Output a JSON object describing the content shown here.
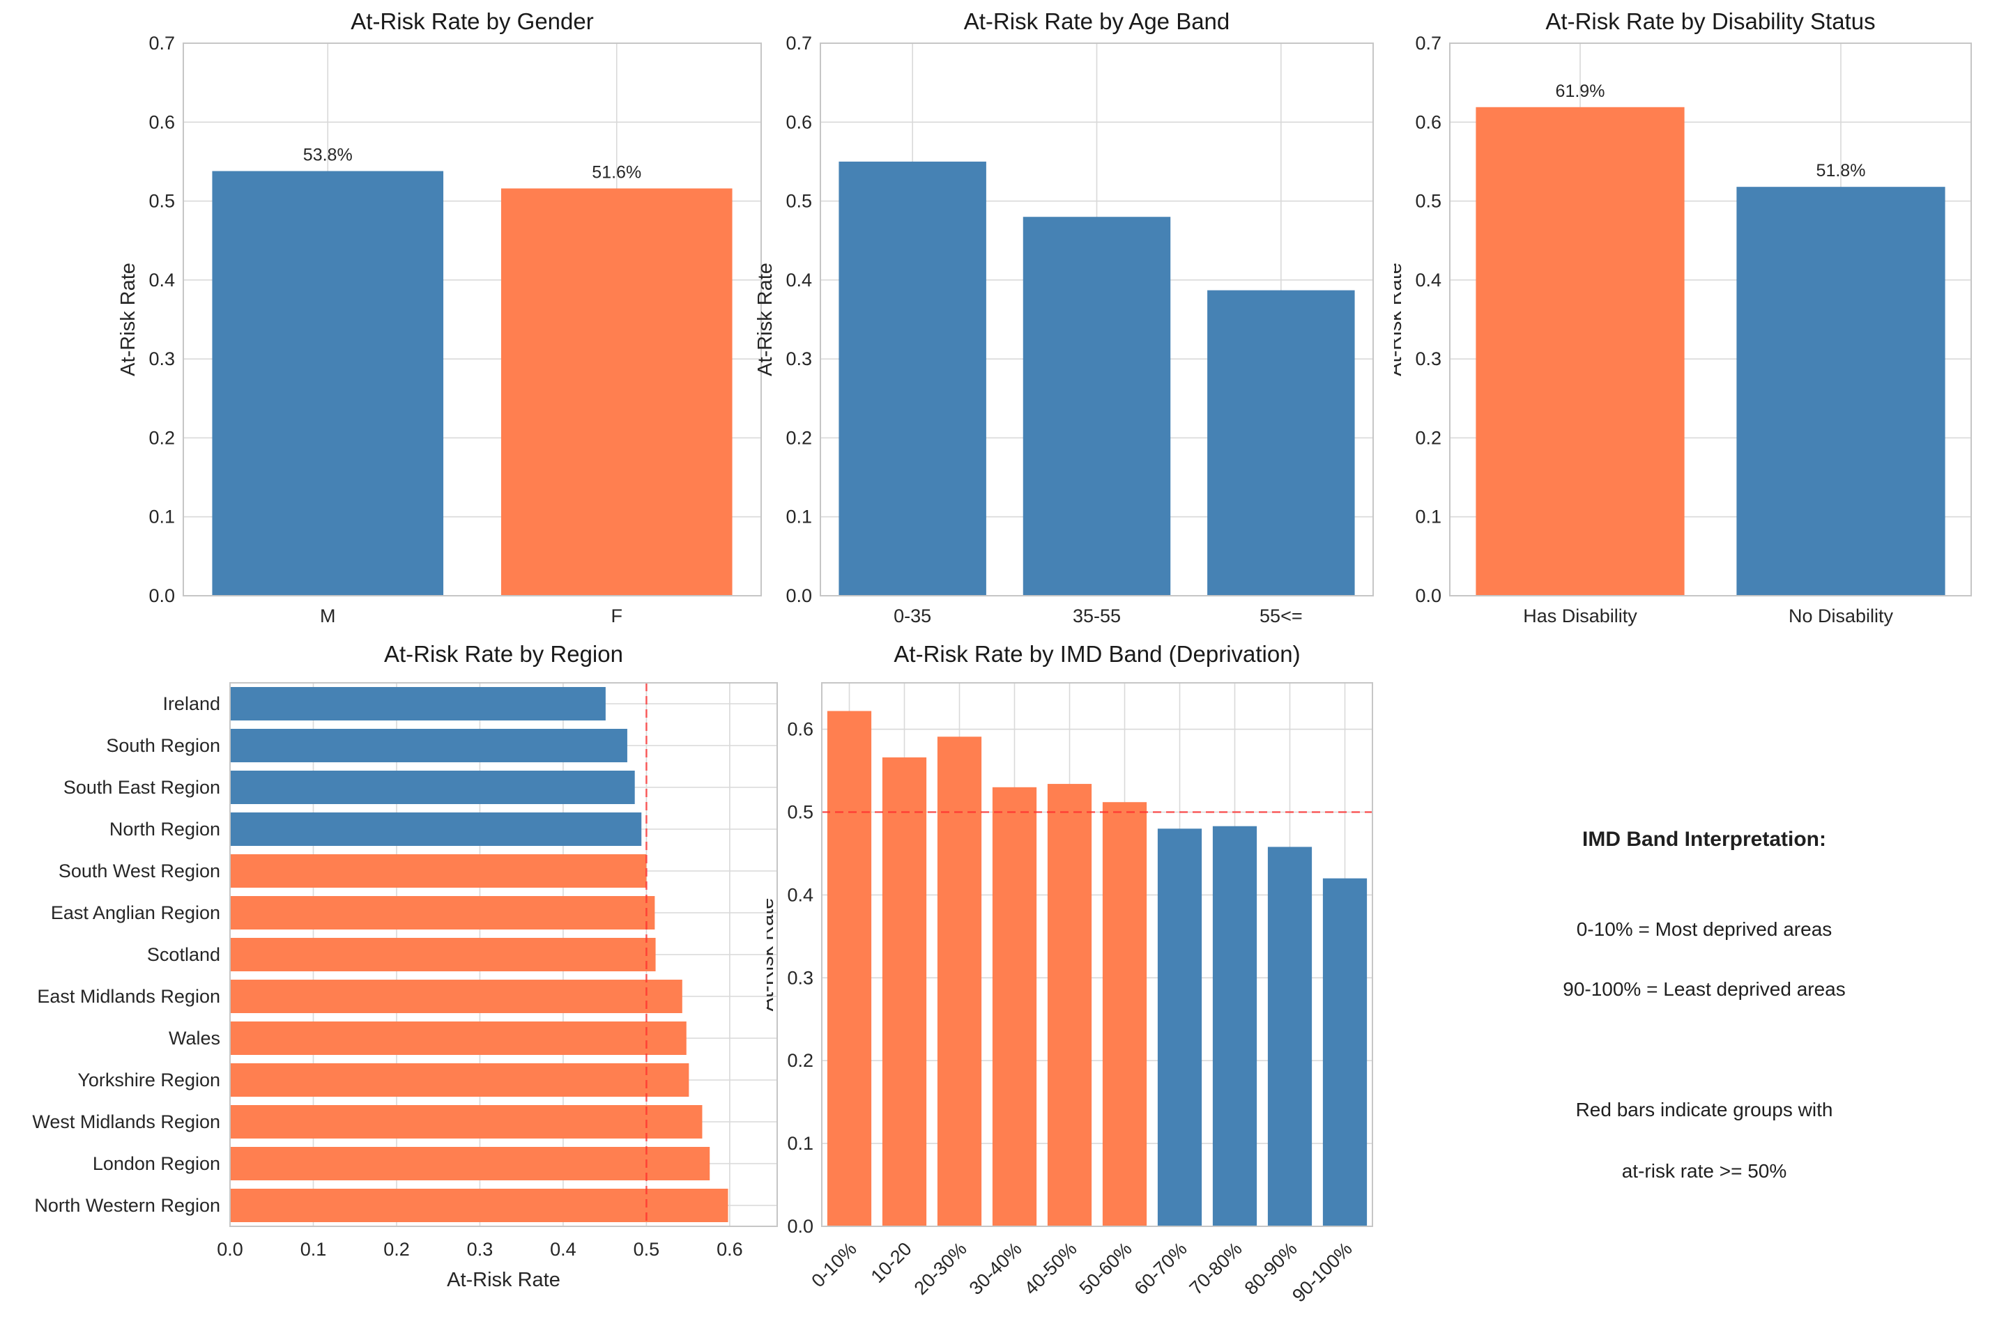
{
  "colors": {
    "blue": "#4682B4",
    "coral": "#FF7F50",
    "threshold_red": "#FF2D2D",
    "grid": "#D9D9D9",
    "spine": "#C6C6C6",
    "text": "#262626",
    "title": "#1A1A1A",
    "background": "#FFFFFF"
  },
  "chart_data": [
    {
      "id": "gender",
      "type": "bar",
      "title": "At-Risk Rate by Gender",
      "ylabel": "At-Risk Rate",
      "categories": [
        "M",
        "F"
      ],
      "values": [
        0.538,
        0.516
      ],
      "bar_labels": [
        "53.8%",
        "51.6%"
      ],
      "bar_colors": [
        "blue",
        "coral"
      ],
      "ylim": [
        0,
        0.7
      ],
      "yticks": [
        0,
        0.1,
        0.2,
        0.3,
        0.4,
        0.5,
        0.6,
        0.7
      ],
      "grid": true
    },
    {
      "id": "age",
      "type": "bar",
      "title": "At-Risk Rate by Age Band",
      "ylabel": "At-Risk Rate",
      "categories": [
        "0-35",
        "35-55",
        "55<="
      ],
      "values": [
        0.55,
        0.48,
        0.387
      ],
      "bar_labels": [],
      "bar_colors": [
        "blue",
        "blue",
        "blue"
      ],
      "ylim": [
        0,
        0.7
      ],
      "yticks": [
        0,
        0.1,
        0.2,
        0.3,
        0.4,
        0.5,
        0.6,
        0.7
      ],
      "grid": true
    },
    {
      "id": "disability",
      "type": "bar",
      "title": "At-Risk Rate by Disability Status",
      "ylabel": "At-Risk Rate",
      "categories": [
        "Has Disability",
        "No Disability"
      ],
      "values": [
        0.619,
        0.518
      ],
      "bar_labels": [
        "61.9%",
        "51.8%"
      ],
      "bar_colors": [
        "coral",
        "blue"
      ],
      "ylim": [
        0,
        0.7
      ],
      "yticks": [
        0,
        0.1,
        0.2,
        0.3,
        0.4,
        0.5,
        0.6,
        0.7
      ],
      "grid": true
    },
    {
      "id": "region",
      "type": "hbar",
      "title": "At-Risk Rate by Region",
      "xlabel": "At-Risk Rate",
      "categories": [
        "Ireland",
        "South Region",
        "South East Region",
        "North Region",
        "South West Region",
        "East Anglian Region",
        "Scotland",
        "East Midlands Region",
        "Wales",
        "Yorkshire Region",
        "West Midlands Region",
        "London Region",
        "North Western Region"
      ],
      "values": [
        0.451,
        0.477,
        0.486,
        0.494,
        0.5,
        0.51,
        0.511,
        0.543,
        0.548,
        0.551,
        0.567,
        0.576,
        0.598
      ],
      "bar_colors": [
        "blue",
        "blue",
        "blue",
        "blue",
        "coral",
        "coral",
        "coral",
        "coral",
        "coral",
        "coral",
        "coral",
        "coral",
        "coral"
      ],
      "xlim": [
        0,
        0.657
      ],
      "xticks": [
        0,
        0.1,
        0.2,
        0.3,
        0.4,
        0.5,
        0.6
      ],
      "threshold": 0.5,
      "grid": true
    },
    {
      "id": "imd",
      "type": "bar",
      "title": "At-Risk Rate by IMD Band (Deprivation)",
      "ylabel": "At-Risk Rate",
      "categories": [
        "0-10%",
        "10-20",
        "20-30%",
        "30-40%",
        "40-50%",
        "50-60%",
        "60-70%",
        "70-80%",
        "80-90%",
        "90-100%"
      ],
      "values": [
        0.622,
        0.566,
        0.591,
        0.53,
        0.534,
        0.512,
        0.48,
        0.483,
        0.458,
        0.42
      ],
      "bar_labels": [],
      "bar_colors": [
        "coral",
        "coral",
        "coral",
        "coral",
        "coral",
        "coral",
        "blue",
        "blue",
        "blue",
        "blue"
      ],
      "ylim": [
        0,
        0.656
      ],
      "yticks": [
        0,
        0.1,
        0.2,
        0.3,
        0.4,
        0.5,
        0.6
      ],
      "threshold": 0.5,
      "tick_rotation": 45,
      "grid": true
    }
  ],
  "notes": {
    "title": "IMD Band Interpretation:",
    "lines": [
      "0-10% = Most deprived areas",
      "90-100% = Least deprived areas",
      "Red bars indicate groups with",
      "at-risk rate >= 50%"
    ]
  }
}
